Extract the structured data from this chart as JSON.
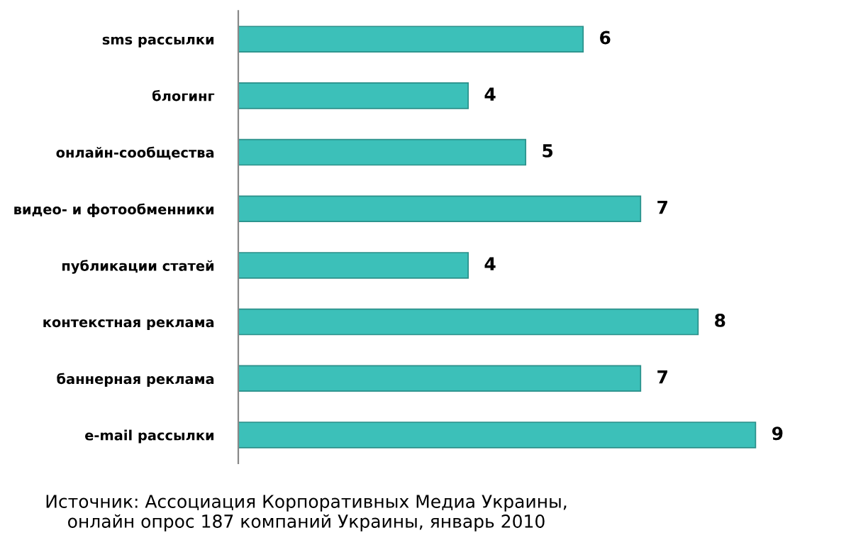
{
  "chart_data": {
    "type": "bar",
    "orientation": "horizontal",
    "categories": [
      "sms рассылки",
      "блогинг",
      "онлайн-сообщества",
      "видео- и фотообменники",
      "публикации статей",
      "контекстная реклама",
      "баннерная реклама",
      "e-mail рассылки"
    ],
    "values": [
      6,
      4,
      5,
      7,
      4,
      8,
      7,
      9
    ],
    "color": "#3cc0b9",
    "data_labels": true,
    "annotations": [
      "Источник: Ассоциация Корпоративных Медиа Украины,\nонлайн опрос 187 компаний Украины, январь 2010"
    ]
  }
}
